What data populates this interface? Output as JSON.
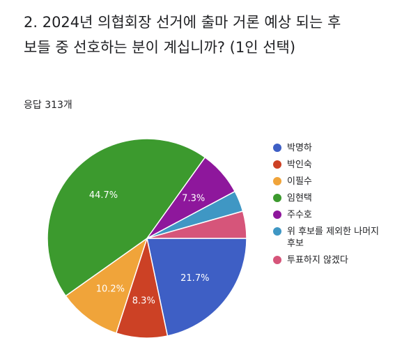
{
  "question": "2. 2024년 의협회장 선거에 출마 거론 예상 되는 후보들 중 선호하는 분이 계십니까? (1인 선택)",
  "response_count": "응답 313개",
  "chart_data": {
    "type": "pie",
    "title": "",
    "categories": [
      "박명하",
      "박인숙",
      "이필수",
      "임현택",
      "주수호",
      "위 후보를 제외한 나머지 후보",
      "투표하지 않겠다"
    ],
    "values": [
      21.7,
      8.3,
      10.2,
      44.7,
      7.3,
      3.4,
      4.4
    ],
    "value_labels": [
      "21.7%",
      "8.3%",
      "10.2%",
      "44.7%",
      "7.3%",
      "",
      ""
    ],
    "colors": [
      "#3e5fc5",
      "#cc4125",
      "#f0a43a",
      "#3c9a2e",
      "#8e179c",
      "#3f97c4",
      "#d6557a"
    ],
    "legend_position": "right",
    "start_angle_deg": 90,
    "direction": "clockwise"
  }
}
